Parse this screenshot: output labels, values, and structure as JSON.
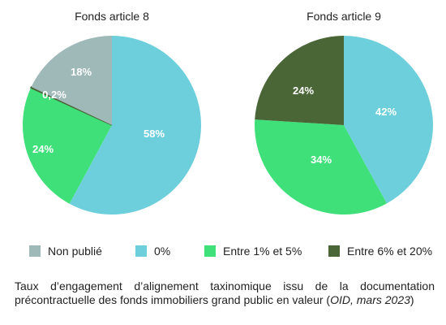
{
  "chart_data": [
    {
      "type": "pie",
      "title": "Fonds article 8",
      "slices": [
        {
          "category": "0%",
          "value": 58,
          "label": "58%"
        },
        {
          "category": "Entre 1% et 5%",
          "value": 24,
          "label": "24%"
        },
        {
          "category": "Entre 6% et 20%",
          "value": 0.2,
          "label": "0,2%"
        },
        {
          "category": "Non publié",
          "value": 18,
          "label": "18%"
        }
      ]
    },
    {
      "type": "pie",
      "title": "Fonds article 9",
      "slices": [
        {
          "category": "0%",
          "value": 42,
          "label": "42%"
        },
        {
          "category": "Entre 1% et 5%",
          "value": 34,
          "label": "34%"
        },
        {
          "category": "Entre 6% et 20%",
          "value": 24,
          "label": "24%"
        }
      ]
    }
  ],
  "legend": [
    {
      "label": "Non publié",
      "color": "#9fb8b8"
    },
    {
      "label": "0%",
      "color": "#6ecfdc"
    },
    {
      "label": "Entre 1% et 5%",
      "color": "#3fe07a"
    },
    {
      "label": "Entre 6% et 20%",
      "color": "#4a6637"
    }
  ],
  "caption": {
    "text": "Taux d’engagement d’alignement taxinomique issu de la documentation précontractuelle des fonds immobiliers grand public en valeur (",
    "source": "OID, mars 2023",
    "end": ")"
  }
}
